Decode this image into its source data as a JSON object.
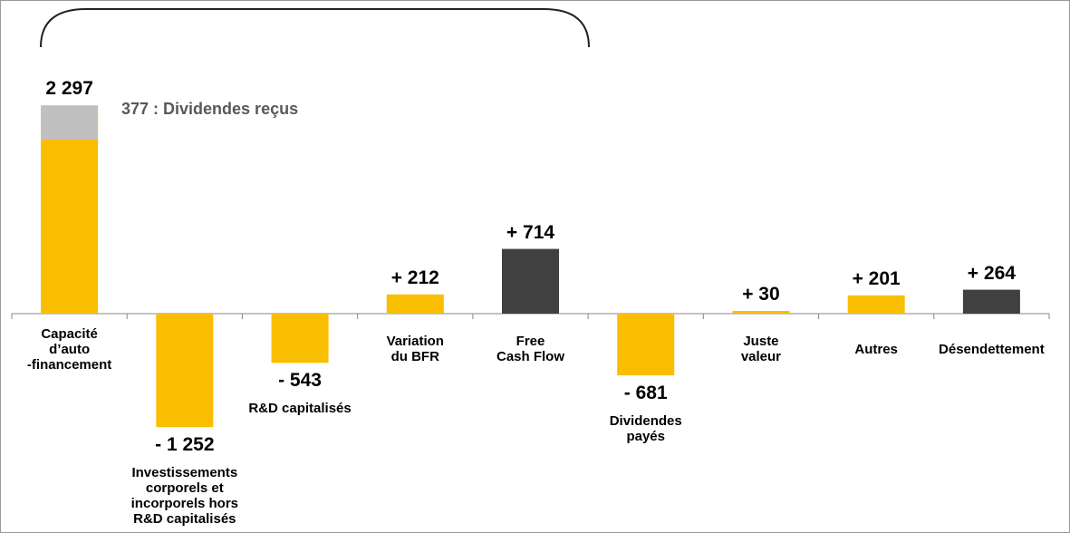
{
  "chart_data": {
    "type": "bar",
    "categories": [
      "Capacité\nd’auto\n-financement",
      "Investissements\ncorporels et\nincorporels hors\nR&D capitalisés",
      "R&D capitalisés",
      "Variation\ndu BFR",
      "Free\nCash Flow",
      "Dividendes\npayés",
      "Juste\nvaleur",
      "Autres",
      "Désendettement"
    ],
    "values": [
      2297,
      -1252,
      -543,
      212,
      714,
      -681,
      30,
      201,
      264
    ],
    "value_labels": [
      "2 297",
      "- 1 252",
      "- 543",
      "+ 212",
      "+ 714",
      "- 681",
      "+ 30",
      "+ 201",
      "+ 264"
    ],
    "colors": [
      "#f9be00",
      "#f9be00",
      "#f9be00",
      "#f9be00",
      "#404040",
      "#f9be00",
      "#f9be00",
      "#f9be00",
      "#404040"
    ],
    "annotation": {
      "value": 377,
      "text": "377 : Dividendes reçus",
      "color": "#c0c0c0"
    }
  }
}
